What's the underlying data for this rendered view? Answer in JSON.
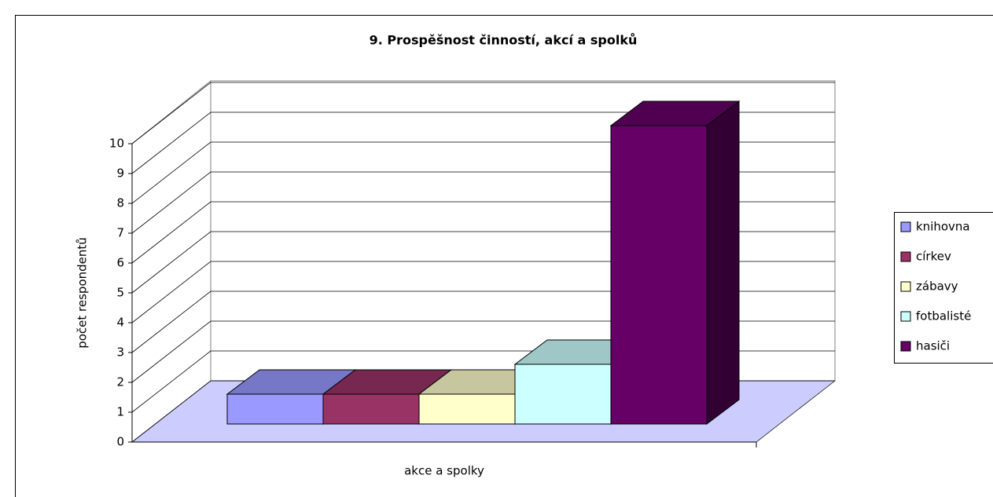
{
  "chart_data": {
    "type": "bar3d",
    "title": "9. Prospěšnost činností, akcí a spolků",
    "y_label": "počet respondentů",
    "categories": [
      "akce a spolky"
    ],
    "series": [
      {
        "name": "knihovna",
        "color": "#9999ff",
        "values": [
          1
        ]
      },
      {
        "name": "církev",
        "color": "#993366",
        "values": [
          1
        ]
      },
      {
        "name": "zábavy",
        "color": "#ffffcc",
        "values": [
          1
        ]
      },
      {
        "name": "fotbalisté",
        "color": "#ccffff",
        "values": [
          2
        ]
      },
      {
        "name": "hasiči",
        "color": "#660066",
        "values": [
          10
        ]
      }
    ],
    "ylim": [
      0,
      10
    ],
    "yticks": [
      0,
      1,
      2,
      3,
      4,
      5,
      6,
      7,
      8,
      9,
      10
    ],
    "grid": true,
    "legend": "right",
    "floor_color": "#ccccff"
  }
}
